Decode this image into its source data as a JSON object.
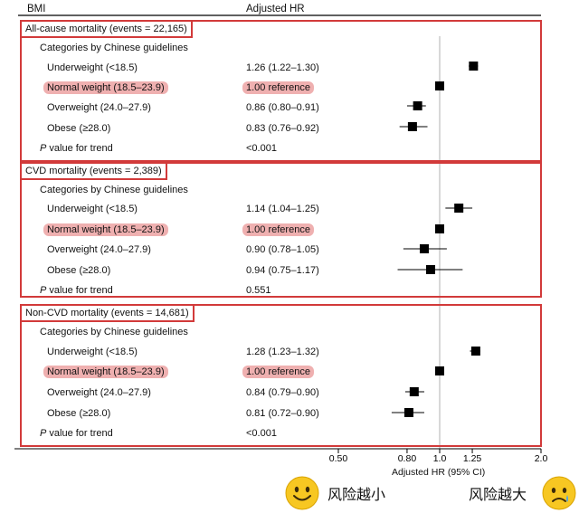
{
  "header": {
    "col1": "BMI",
    "col2": "Adjusted  HR"
  },
  "sections": [
    {
      "title": "All-cause mortality (events = 22,165)",
      "category_label": "Categories by Chinese guidelines",
      "rows": [
        {
          "label": "Underweight (<18.5)",
          "hr_text": "1.26 (1.22–1.30)",
          "highlight": false
        },
        {
          "label": "Normal weight (18.5–23.9)",
          "hr_text": "1.00 reference",
          "highlight": true
        },
        {
          "label": "Overweight (24.0–27.9)",
          "hr_text": "0.86 (0.80–0.91)",
          "highlight": false
        },
        {
          "label": "Obese (≥28.0)",
          "hr_text": "0.83 (0.76–0.92)",
          "highlight": false
        }
      ],
      "p_label_italic": "P",
      "p_label_rest": " value for trend",
      "p_value": "<0.001"
    },
    {
      "title": "CVD mortality (events = 2,389)",
      "category_label": "Categories by Chinese guidelines",
      "rows": [
        {
          "label": "Underweight (<18.5)",
          "hr_text": "1.14 (1.04–1.25)",
          "highlight": false
        },
        {
          "label": "Normal weight (18.5–23.9)",
          "hr_text": "1.00 reference",
          "highlight": true
        },
        {
          "label": "Overweight (24.0–27.9)",
          "hr_text": "0.90 (0.78–1.05)",
          "highlight": false
        },
        {
          "label": "Obese (≥28.0)",
          "hr_text": "0.94 (0.75–1.17)",
          "highlight": false
        }
      ],
      "p_label_italic": "P",
      "p_label_rest": " value for trend",
      "p_value": "0.551"
    },
    {
      "title": "Non-CVD mortality (events = 14,681)",
      "category_label": "Categories by Chinese guidelines",
      "rows": [
        {
          "label": "Underweight (<18.5)",
          "hr_text": "1.28 (1.23–1.32)",
          "highlight": false
        },
        {
          "label": "Normal weight (18.5–23.9)",
          "hr_text": "1.00 reference",
          "highlight": true
        },
        {
          "label": "Overweight (24.0–27.9)",
          "hr_text": "0.84 (0.79–0.90)",
          "highlight": false
        },
        {
          "label": "Obese (≥28.0)",
          "hr_text": "0.81 (0.72–0.90)",
          "highlight": false
        }
      ],
      "p_label_italic": "P",
      "p_label_rest": " value for trend",
      "p_value": "<0.001"
    }
  ],
  "footer": {
    "left_text": "风险越小",
    "right_text": "风险越大"
  },
  "colors": {
    "highlight_box": "#d23a3a",
    "highlight_fill": "#efb0b0",
    "marker": "#000000",
    "refline": "#b0b0b0"
  },
  "chart_data": {
    "type": "forest",
    "xscale": "log",
    "xlim": [
      0.5,
      2.0
    ],
    "xticks": [
      0.5,
      0.8,
      1.0,
      1.25,
      2.0
    ],
    "xtick_labels": [
      "0.50",
      "0.80",
      "1.0",
      "1.25",
      "2.0"
    ],
    "xlabel": "Adjusted HR (95% CI)",
    "reference_line": 1.0,
    "series": [
      {
        "name": "All-cause mortality (events = 22,165)",
        "points": [
          {
            "category": "Underweight (<18.5)",
            "hr": 1.26,
            "lo": 1.22,
            "hi": 1.3
          },
          {
            "category": "Normal weight (18.5–23.9)",
            "hr": 1.0,
            "lo": 1.0,
            "hi": 1.0
          },
          {
            "category": "Overweight (24.0–27.9)",
            "hr": 0.86,
            "lo": 0.8,
            "hi": 0.91
          },
          {
            "category": "Obese (≥28.0)",
            "hr": 0.83,
            "lo": 0.76,
            "hi": 0.92
          }
        ]
      },
      {
        "name": "CVD mortality (events = 2,389)",
        "points": [
          {
            "category": "Underweight (<18.5)",
            "hr": 1.14,
            "lo": 1.04,
            "hi": 1.25
          },
          {
            "category": "Normal weight (18.5–23.9)",
            "hr": 1.0,
            "lo": 1.0,
            "hi": 1.0
          },
          {
            "category": "Overweight (24.0–27.9)",
            "hr": 0.9,
            "lo": 0.78,
            "hi": 1.05
          },
          {
            "category": "Obese (≥28.0)",
            "hr": 0.94,
            "lo": 0.75,
            "hi": 1.17
          }
        ]
      },
      {
        "name": "Non-CVD mortality (events = 14,681)",
        "points": [
          {
            "category": "Underweight (<18.5)",
            "hr": 1.28,
            "lo": 1.23,
            "hi": 1.32
          },
          {
            "category": "Normal weight (18.5–23.9)",
            "hr": 1.0,
            "lo": 1.0,
            "hi": 1.0
          },
          {
            "category": "Overweight (24.0–27.9)",
            "hr": 0.84,
            "lo": 0.79,
            "hi": 0.9
          },
          {
            "category": "Obese (≥28.0)",
            "hr": 0.81,
            "lo": 0.72,
            "hi": 0.9
          }
        ]
      }
    ]
  }
}
